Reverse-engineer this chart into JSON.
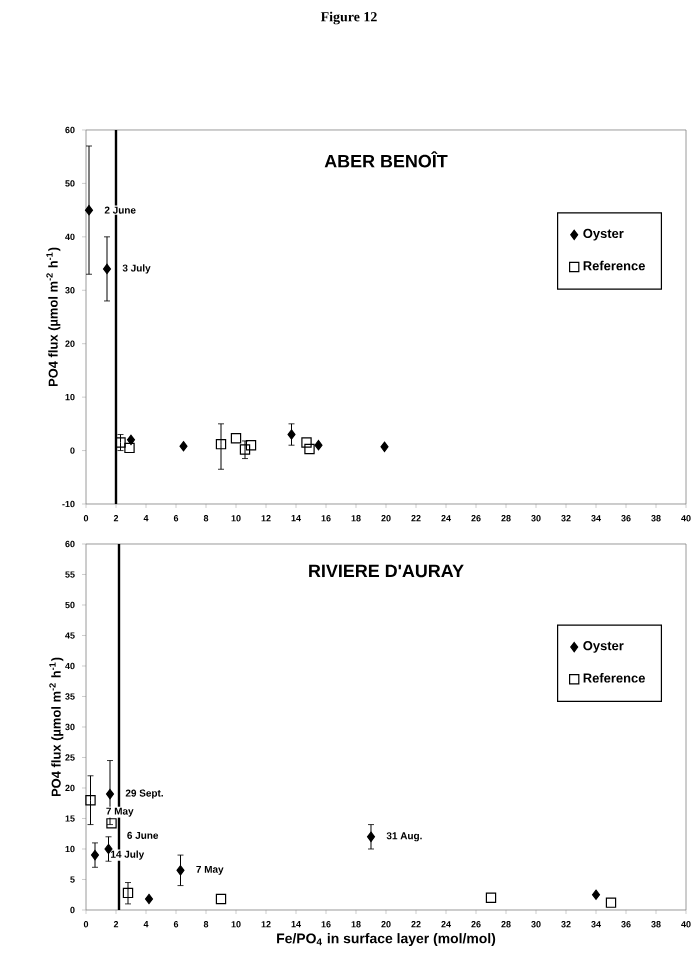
{
  "chart_data": [
    {
      "type": "scatter",
      "title": "ABER    BENOÎT",
      "ylabel": "PO4  flux (µmol m$^{-2}$ h$^{-1}$)",
      "annotations": [
        "Figure 12",
        {
          "text": "2 June",
          "x": 0.2,
          "y": 45
        },
        {
          "text": "3 July",
          "x": 1.4,
          "y": 34
        }
      ],
      "xlim": [
        0,
        40
      ],
      "xticks": [
        0,
        2,
        4,
        6,
        8,
        10,
        12,
        14,
        16,
        18,
        20,
        22,
        24,
        26,
        28,
        30,
        32,
        34,
        36,
        38,
        40
      ],
      "ylim": [
        -10,
        60
      ],
      "yticks": [
        -10,
        0,
        10,
        20,
        30,
        40,
        50,
        60
      ],
      "legend": "right",
      "grid": false,
      "ref_lines": [
        {
          "axis": "x",
          "value": 2,
          "color": "#000000"
        }
      ],
      "series": [
        {
          "name": "Oyster",
          "color": "#000000",
          "marker": "diamond",
          "x": [
            0.2,
            1.4,
            3,
            6.5,
            13.7,
            15.5,
            19.9
          ],
          "values": [
            45,
            34,
            2,
            0.8,
            3,
            1,
            0.7
          ],
          "errors": [
            12,
            6,
            null,
            null,
            2,
            null,
            null
          ]
        },
        {
          "name": "Reference",
          "color": "#000000",
          "marker": "square",
          "x": [
            2.3,
            2.9,
            9,
            10,
            10.6,
            11,
            14.7,
            14.9
          ],
          "values": [
            1.5,
            0.5,
            1.2,
            2.3,
            0.2,
            1,
            1.5,
            0.3
          ],
          "errors": [
            1.5,
            null,
            [
              -3.5,
              5
            ],
            null,
            [
              -1.5,
              1.8
            ],
            null,
            null,
            null
          ]
        }
      ]
    },
    {
      "type": "scatter",
      "title": "RIVIERE D'AURAY",
      "ylabel": "PO4  flux (µmol m$^{-2}$ h$^{-1}$)",
      "xlabel": "Fe/PO$_{4}$  in surface layer (mol/mol)",
      "annotations": [
        {
          "text": "29 Sept.",
          "x": 1.6,
          "y": 19
        },
        {
          "text": "7 May",
          "x": 0.3,
          "y": 18
        },
        {
          "text": "6 June",
          "x": 1.7,
          "y": 14.2
        },
        {
          "text": "14 July",
          "x": 0.6,
          "y": 9
        },
        {
          "text": "7 May",
          "x": 6.3,
          "y": 6.5
        },
        {
          "text": "31 Aug.",
          "x": 19,
          "y": 12
        }
      ],
      "xlim": [
        0,
        40
      ],
      "xticks": [
        0,
        2,
        4,
        6,
        8,
        10,
        12,
        14,
        16,
        18,
        20,
        22,
        24,
        26,
        28,
        30,
        32,
        34,
        36,
        38,
        40
      ],
      "ylim": [
        0,
        60
      ],
      "yticks": [
        0,
        5,
        10,
        15,
        20,
        25,
        30,
        35,
        40,
        45,
        50,
        55,
        60
      ],
      "legend": "right",
      "grid": false,
      "ref_lines": [
        {
          "axis": "x",
          "value": 2.2,
          "color": "#000000"
        }
      ],
      "series": [
        {
          "name": "Oyster",
          "color": "#000000",
          "marker": "diamond",
          "x": [
            0.6,
            1.5,
            1.6,
            4.2,
            6.3,
            19,
            34
          ],
          "values": [
            9,
            10,
            19,
            1.8,
            6.5,
            12,
            2.5
          ],
          "errors": [
            2,
            2,
            [
              14,
              24.5
            ],
            null,
            [
              4,
              9
            ],
            2,
            null
          ]
        },
        {
          "name": "Reference",
          "color": "#000000",
          "marker": "square",
          "x": [
            0.3,
            1.7,
            2.8,
            9,
            27,
            35
          ],
          "values": [
            18,
            14.2,
            2.8,
            1.8,
            2,
            1.2
          ],
          "errors": [
            4,
            null,
            [
              1,
              4.5
            ],
            null,
            null,
            null
          ]
        }
      ]
    }
  ]
}
